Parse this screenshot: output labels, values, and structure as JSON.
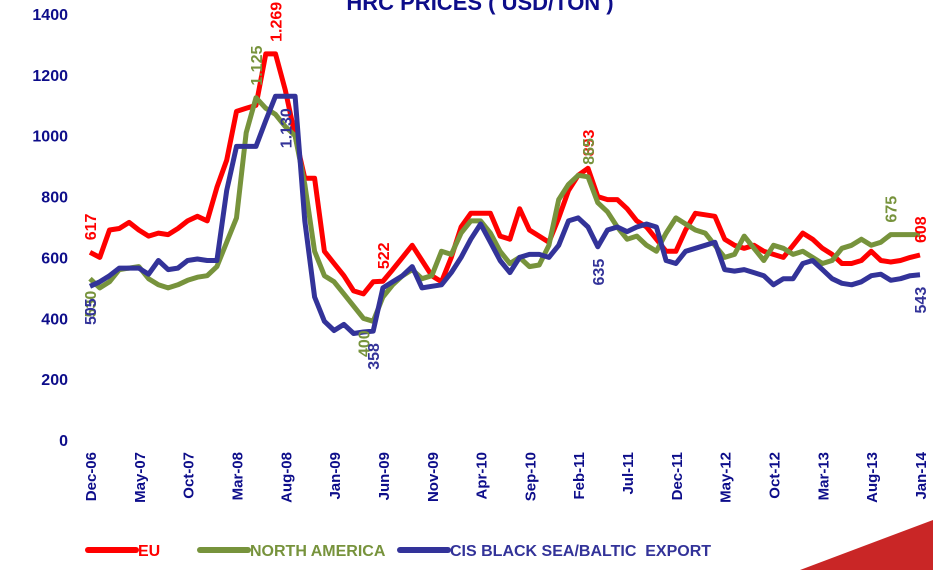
{
  "chart_data": {
    "type": "line",
    "title": "HRC PRICES ( USD/TON )",
    "categories": [
      "Dec-06",
      null,
      null,
      null,
      null,
      "May-07",
      null,
      null,
      null,
      null,
      "Oct-07",
      null,
      null,
      null,
      null,
      "Mar-08",
      null,
      null,
      null,
      null,
      "Aug-08",
      null,
      null,
      null,
      null,
      "Jan-09",
      null,
      null,
      null,
      null,
      "Jun-09",
      null,
      null,
      null,
      null,
      "Nov-09",
      null,
      null,
      null,
      null,
      "Apr-10",
      null,
      null,
      null,
      null,
      "Sep-10",
      null,
      null,
      null,
      null,
      "Feb-11",
      null,
      null,
      null,
      null,
      "Jul-11",
      null,
      null,
      null,
      null,
      "Dec-11",
      null,
      null,
      null,
      null,
      "May-12",
      null,
      null,
      null,
      null,
      "Oct-12",
      null,
      null,
      null,
      null,
      "Mar-13",
      null,
      null,
      null,
      null,
      "Aug-13",
      null,
      null,
      null,
      null,
      "Jan-14"
    ],
    "ylim": [
      0,
      1400
    ],
    "yticks": [
      0,
      200,
      400,
      600,
      800,
      1000,
      1200,
      1400
    ],
    "series": [
      {
        "name": "EU",
        "color": "#ff0000",
        "values": [
          617,
          600,
          690,
          695,
          715,
          690,
          670,
          680,
          675,
          695,
          720,
          735,
          720,
          830,
          920,
          1080,
          1090,
          1100,
          1269,
          1269,
          1150,
          1000,
          860,
          860,
          620,
          580,
          540,
          490,
          480,
          520,
          522,
          560,
          600,
          640,
          590,
          540,
          520,
          600,
          700,
          745,
          745,
          745,
          670,
          660,
          760,
          690,
          670,
          650,
          730,
          820,
          870,
          893,
          800,
          790,
          790,
          760,
          720,
          700,
          660,
          620,
          620,
          690,
          745,
          740,
          735,
          660,
          640,
          630,
          640,
          620,
          610,
          600,
          640,
          680,
          660,
          630,
          610,
          580,
          580,
          590,
          620,
          590,
          585,
          590,
          600,
          608
        ],
        "value_labels": [
          "617",
          null,
          null,
          null,
          null,
          null,
          null,
          null,
          null,
          null,
          null,
          null,
          null,
          null,
          null,
          null,
          null,
          null,
          null,
          "1.269",
          null,
          null,
          null,
          null,
          null,
          null,
          null,
          null,
          null,
          null,
          "522",
          null,
          null,
          null,
          null,
          null,
          null,
          null,
          null,
          null,
          null,
          null,
          null,
          null,
          null,
          null,
          null,
          null,
          null,
          null,
          null,
          "893",
          null,
          null,
          null,
          null,
          null,
          null,
          null,
          null,
          null,
          null,
          null,
          null,
          null,
          null,
          null,
          null,
          null,
          null,
          null,
          null,
          null,
          null,
          null,
          null,
          null,
          null,
          null,
          null,
          null,
          null,
          null,
          null,
          null,
          "608"
        ]
      },
      {
        "name": "NORTH AMERICA",
        "color": "#77933c",
        "values": [
          530,
          500,
          520,
          560,
          565,
          570,
          530,
          510,
          500,
          510,
          525,
          535,
          540,
          570,
          650,
          730,
          1010,
          1125,
          1090,
          1070,
          1030,
          1000,
          840,
          620,
          540,
          520,
          480,
          440,
          400,
          390,
          470,
          510,
          540,
          560,
          530,
          540,
          620,
          610,
          680,
          720,
          720,
          680,
          620,
          580,
          600,
          570,
          575,
          640,
          790,
          840,
          870,
          865,
          780,
          750,
          700,
          660,
          670,
          640,
          620,
          680,
          730,
          710,
          690,
          680,
          640,
          600,
          610,
          670,
          630,
          590,
          640,
          630,
          610,
          620,
          600,
          580,
          590,
          630,
          640,
          660,
          640,
          650,
          675,
          675,
          675,
          675
        ],
        "value_labels": [
          "530",
          null,
          null,
          null,
          null,
          null,
          null,
          null,
          null,
          null,
          null,
          null,
          null,
          null,
          null,
          null,
          null,
          "1.125",
          null,
          null,
          null,
          null,
          null,
          null,
          null,
          null,
          null,
          null,
          "400",
          null,
          null,
          null,
          null,
          null,
          null,
          null,
          null,
          null,
          null,
          null,
          null,
          null,
          null,
          null,
          null,
          null,
          null,
          null,
          null,
          null,
          null,
          "865",
          null,
          null,
          null,
          null,
          null,
          null,
          null,
          null,
          null,
          null,
          null,
          null,
          null,
          null,
          null,
          null,
          null,
          null,
          null,
          null,
          null,
          null,
          null,
          null,
          null,
          null,
          null,
          null,
          null,
          null,
          "675",
          null,
          null
        ]
      },
      {
        "name": "CIS BLACK SEA/BALTIC  EXPORT",
        "color": "#333399",
        "values": [
          505,
          520,
          540,
          565,
          565,
          565,
          545,
          590,
          560,
          565,
          590,
          595,
          590,
          590,
          820,
          965,
          965,
          965,
          1050,
          1130,
          1130,
          1130,
          720,
          470,
          390,
          360,
          380,
          350,
          355,
          358,
          500,
          520,
          540,
          570,
          500,
          505,
          510,
          550,
          600,
          660,
          710,
          650,
          590,
          550,
          600,
          610,
          610,
          600,
          640,
          720,
          730,
          700,
          635,
          690,
          700,
          685,
          700,
          710,
          700,
          590,
          580,
          620,
          630,
          640,
          650,
          560,
          555,
          560,
          550,
          540,
          510,
          530,
          530,
          580,
          590,
          560,
          530,
          515,
          510,
          520,
          540,
          545,
          525,
          530,
          540,
          543
        ],
        "value_labels": [
          "505",
          null,
          null,
          null,
          null,
          null,
          null,
          null,
          null,
          null,
          null,
          null,
          null,
          null,
          null,
          null,
          null,
          null,
          null,
          null,
          "1.130",
          null,
          null,
          null,
          null,
          null,
          null,
          null,
          null,
          "358",
          null,
          null,
          null,
          null,
          null,
          null,
          null,
          null,
          null,
          null,
          null,
          null,
          null,
          null,
          null,
          null,
          null,
          null,
          null,
          null,
          null,
          null,
          "635",
          null,
          null,
          null,
          null,
          null,
          null,
          null,
          null,
          null,
          null,
          null,
          null,
          null,
          null,
          null,
          null,
          null,
          null,
          null,
          null,
          null,
          null,
          null,
          null,
          null,
          null,
          null,
          null,
          null,
          null,
          null,
          null,
          "543"
        ]
      }
    ]
  }
}
